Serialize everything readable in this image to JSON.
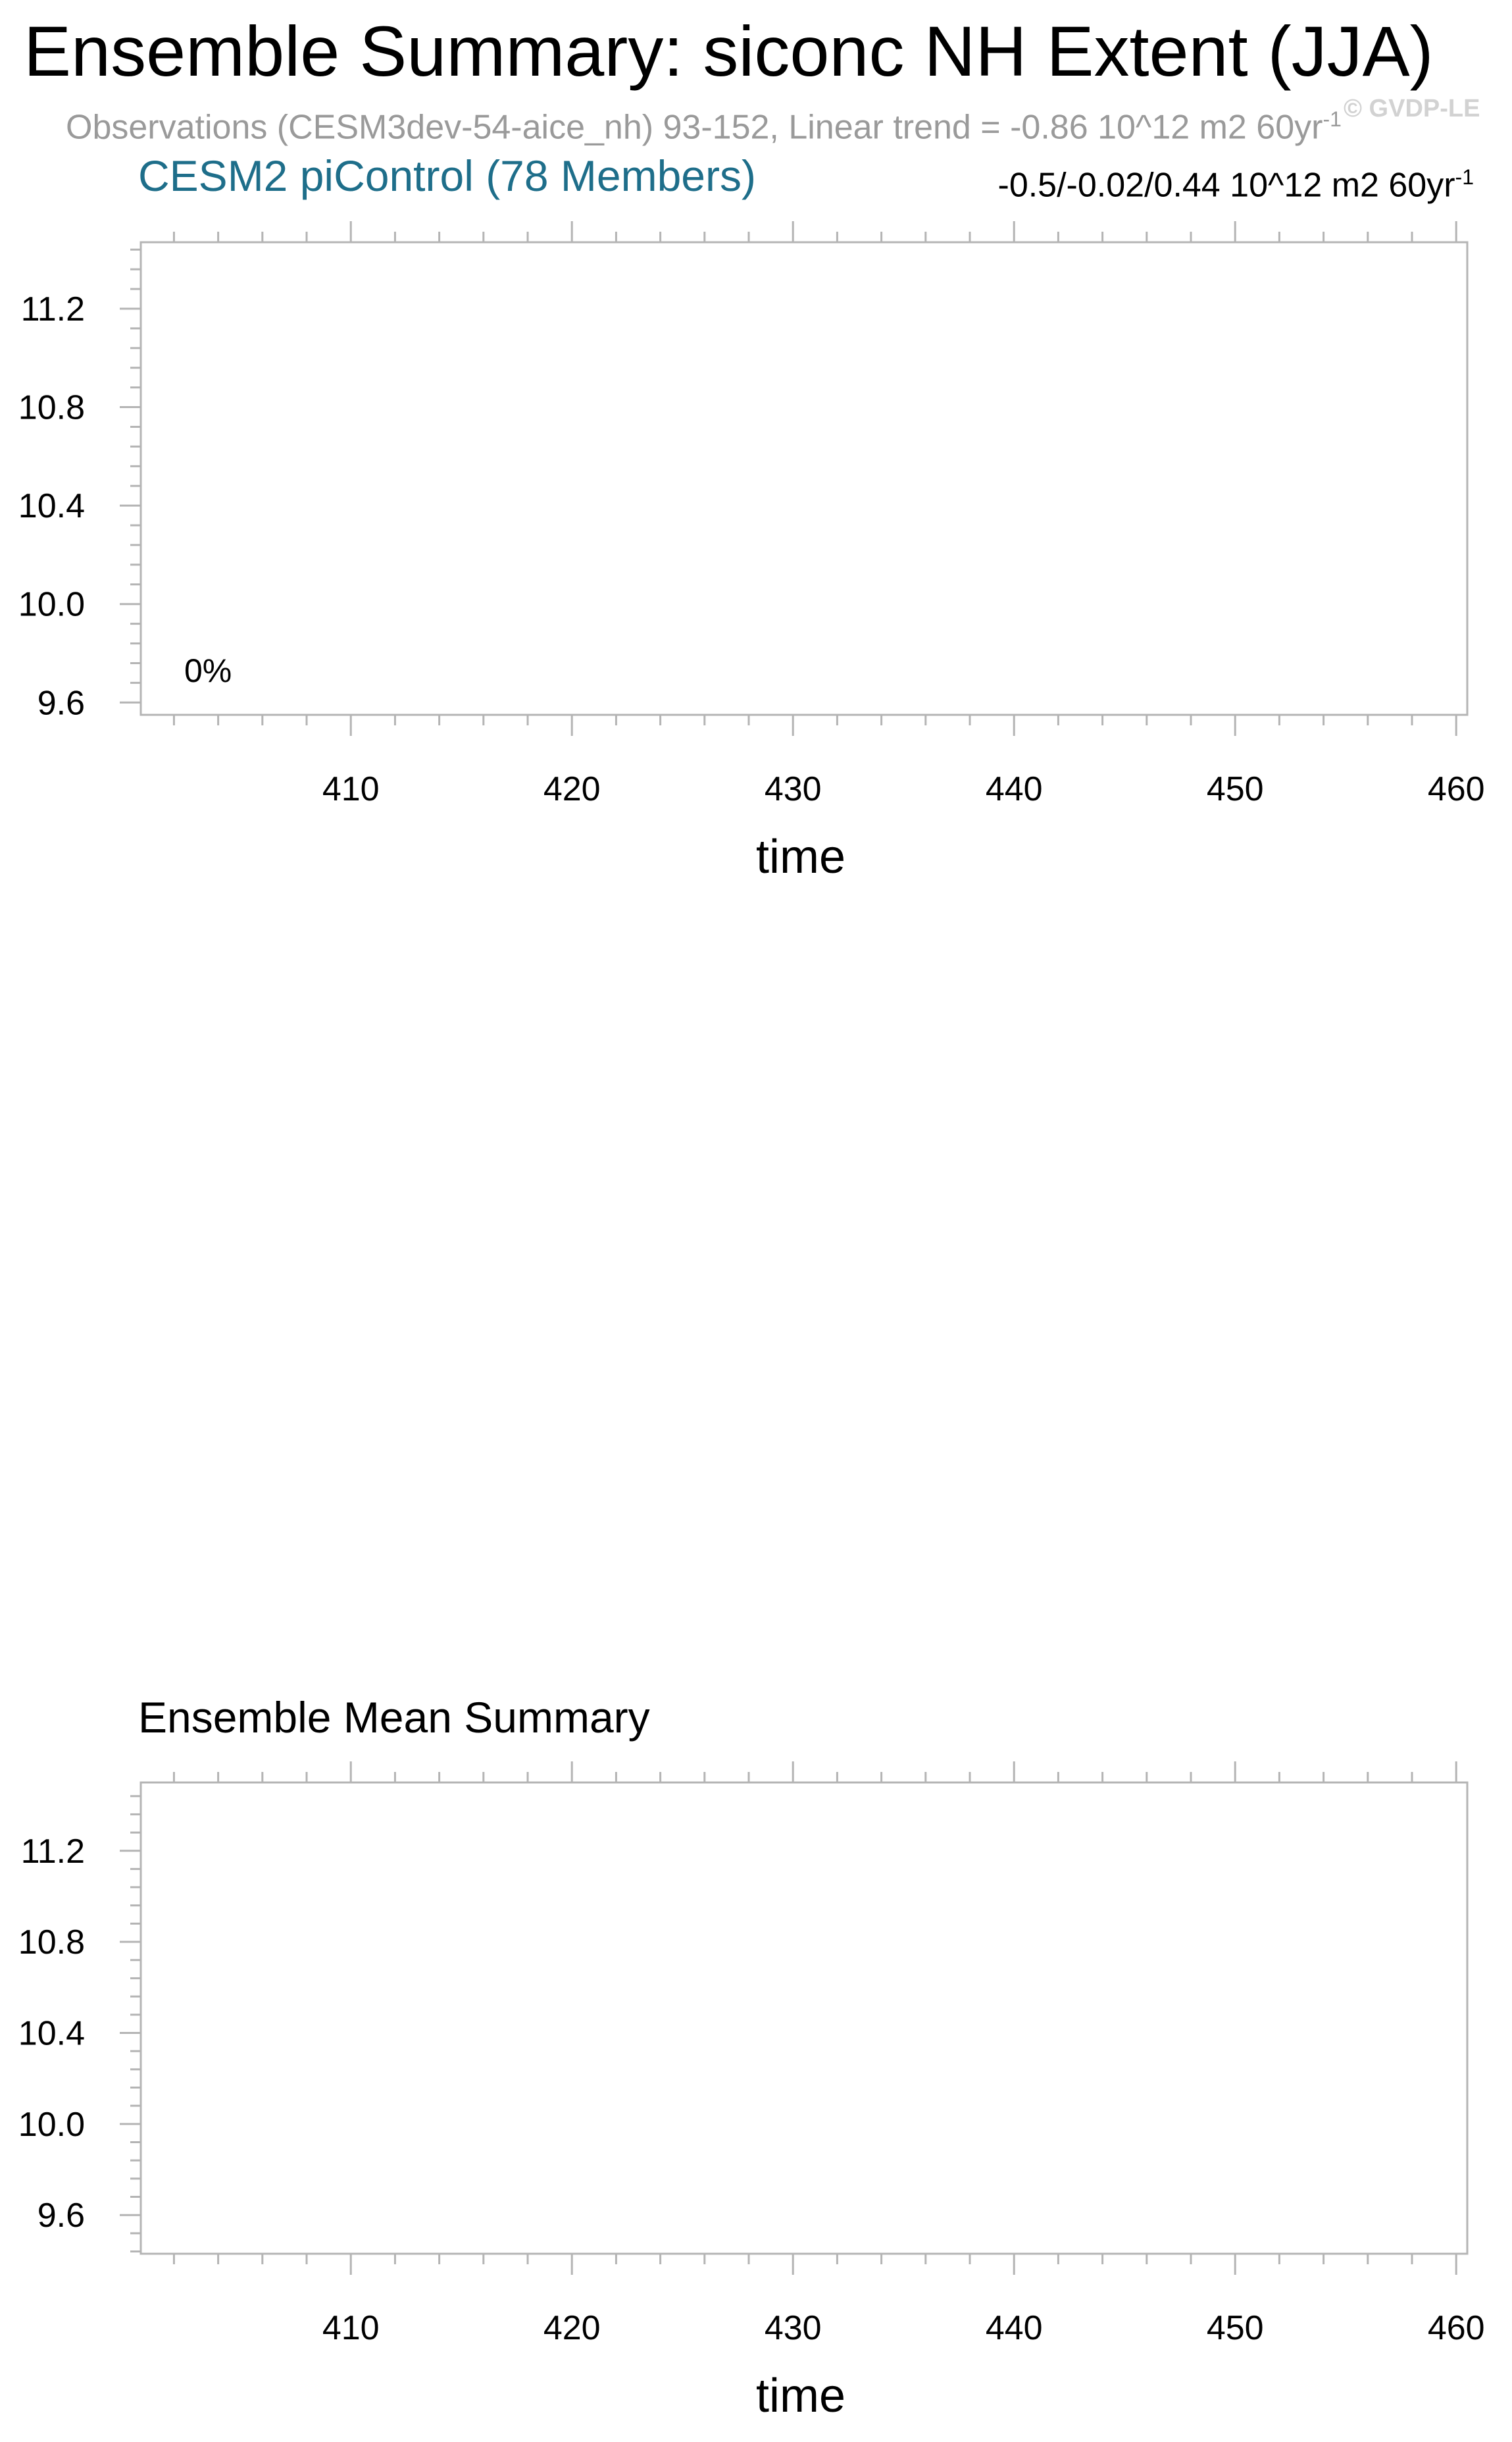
{
  "figure": {
    "title": "Ensemble Summary: siconc NH Extent (JJA)",
    "observations_line": "Observations (CESM3dev-54-aice_nh) 93-152, Linear trend = -0.86 10^12 m2 60yr",
    "observations_sup": "-1",
    "watermark": "© GVDP-LE"
  },
  "colors": {
    "model_title": "#1e6e8a",
    "observations_text": "#9a9a9a",
    "frame": "#b4b4b4"
  },
  "chart_data": [
    {
      "type": "line",
      "title": "CESM2 piControl (78 Members)",
      "trend_stats": "-0.5/-0.02/0.44 10^12 m2 60yr",
      "trend_stats_sup": "-1",
      "percent_label": "0%",
      "xlabel": "time",
      "ylabel": "",
      "xlim": [
        400.5,
        460.5
      ],
      "ylim": [
        9.55,
        11.47
      ],
      "xticks": [
        410,
        420,
        430,
        440,
        450,
        460
      ],
      "xtick_labels": [
        "410",
        "420",
        "430",
        "440",
        "450",
        "460"
      ],
      "yticks": [
        9.6,
        10.0,
        10.4,
        10.8,
        11.2
      ],
      "ytick_labels": [
        "9.6",
        "10.0",
        "10.4",
        "10.8",
        "11.2"
      ],
      "grid": false,
      "series": []
    },
    {
      "type": "line",
      "title": "Ensemble Mean Summary",
      "xlabel": "time",
      "ylabel": "",
      "xlim": [
        400.5,
        460.5
      ],
      "ylim": [
        9.43,
        11.5
      ],
      "xticks": [
        410,
        420,
        430,
        440,
        450,
        460
      ],
      "xtick_labels": [
        "410",
        "420",
        "430",
        "440",
        "450",
        "460"
      ],
      "yticks": [
        9.6,
        10.0,
        10.4,
        10.8,
        11.2
      ],
      "ytick_labels": [
        "9.6",
        "10.0",
        "10.4",
        "10.8",
        "11.2"
      ],
      "grid": false,
      "series": []
    }
  ]
}
